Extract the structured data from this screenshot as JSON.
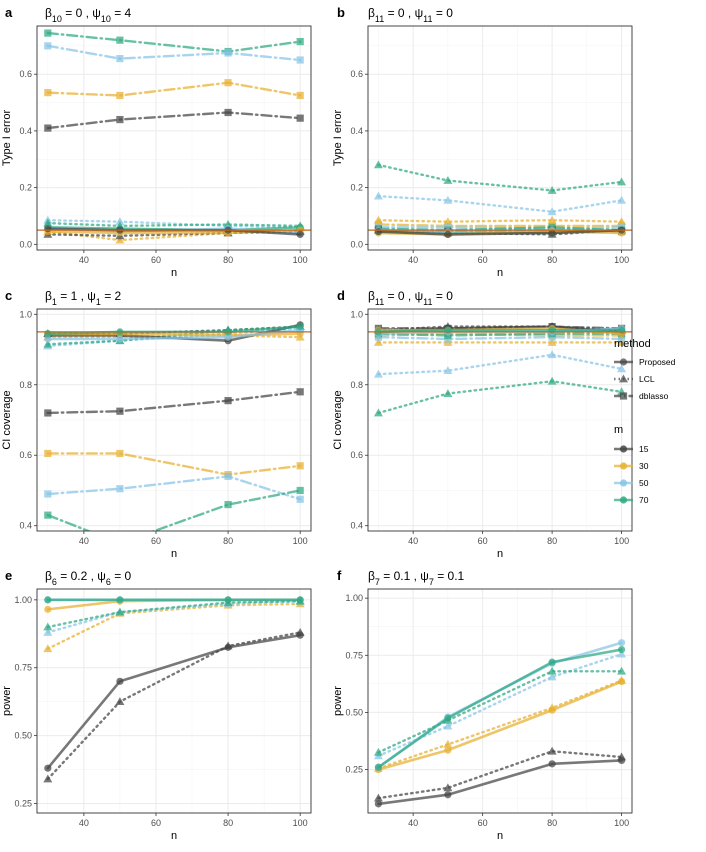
{
  "colors": {
    "m15": "#444444",
    "m30": "#E7B02F",
    "m50": "#86C5E6",
    "m70": "#2EA982",
    "hline": "#C4691A",
    "grid": "#EBEBEB",
    "minor_grid": "#F4F4F4",
    "border": "#333333"
  },
  "legend": {
    "method_title": "method",
    "methods": [
      {
        "label": "Proposed",
        "shape": "circle",
        "linetype": "solid"
      },
      {
        "label": "LCL",
        "shape": "triangle",
        "linetype": "dotted"
      },
      {
        "label": "dblasso",
        "shape": "square",
        "linetype": "dotdash"
      }
    ],
    "m_title": "m",
    "m_values": [
      {
        "label": "15",
        "color": "#444444"
      },
      {
        "label": "30",
        "color": "#E7B02F"
      },
      {
        "label": "50",
        "color": "#86C5E6"
      },
      {
        "label": "70",
        "color": "#2EA982"
      }
    ]
  },
  "chart_data": [
    {
      "panel": "a",
      "type": "line",
      "title": {
        "beta_sub": "10",
        "beta_val": "0",
        "psi_sub": "10",
        "psi_val": "4"
      },
      "xlabel": "n",
      "ylabel": "Type I error",
      "xlim": [
        27,
        103
      ],
      "ylim": [
        -0.02,
        0.77
      ],
      "xticks": [
        40,
        60,
        80,
        100
      ],
      "yticks": [
        0.0,
        0.2,
        0.4,
        0.6
      ],
      "ytick_labels": [
        "0.0",
        "0.2",
        "0.4",
        "0.6"
      ],
      "hline": 0.05,
      "x": [
        30,
        50,
        80,
        100
      ],
      "series": [
        {
          "method": "dblasso",
          "m": "70",
          "values": [
            0.745,
            0.72,
            0.68,
            0.715
          ]
        },
        {
          "method": "dblasso",
          "m": "50",
          "values": [
            0.7,
            0.655,
            0.675,
            0.65
          ]
        },
        {
          "method": "dblasso",
          "m": "30",
          "values": [
            0.535,
            0.525,
            0.57,
            0.525
          ]
        },
        {
          "method": "dblasso",
          "m": "15",
          "values": [
            0.41,
            0.44,
            0.465,
            0.445
          ]
        },
        {
          "method": "LCL",
          "m": "50",
          "values": [
            0.085,
            0.08,
            0.065,
            0.06
          ]
        },
        {
          "method": "LCL",
          "m": "70",
          "values": [
            0.075,
            0.065,
            0.07,
            0.065
          ]
        },
        {
          "method": "LCL",
          "m": "30",
          "values": [
            0.045,
            0.015,
            0.04,
            0.05
          ]
        },
        {
          "method": "LCL",
          "m": "15",
          "values": [
            0.035,
            0.03,
            0.04,
            0.045
          ]
        },
        {
          "method": "Proposed",
          "m": "70",
          "values": [
            0.06,
            0.055,
            0.05,
            0.06
          ]
        },
        {
          "method": "Proposed",
          "m": "50",
          "values": [
            0.055,
            0.045,
            0.055,
            0.04
          ]
        },
        {
          "method": "Proposed",
          "m": "30",
          "values": [
            0.045,
            0.04,
            0.04,
            0.05
          ]
        },
        {
          "method": "Proposed",
          "m": "15",
          "values": [
            0.055,
            0.05,
            0.05,
            0.035
          ]
        }
      ]
    },
    {
      "panel": "b",
      "type": "line",
      "title": {
        "beta_sub": "11",
        "beta_val": "0",
        "psi_sub": "11",
        "psi_val": "0"
      },
      "xlabel": "n",
      "ylabel": "Type I error",
      "xlim": [
        27,
        103
      ],
      "ylim": [
        -0.02,
        0.77
      ],
      "xticks": [
        40,
        60,
        80,
        100
      ],
      "yticks": [
        0.0,
        0.2,
        0.4,
        0.6
      ],
      "ytick_labels": [
        "0.0",
        "0.2",
        "0.4",
        "0.6"
      ],
      "hline": 0.05,
      "x": [
        30,
        50,
        80,
        100
      ],
      "series": [
        {
          "method": "LCL",
          "m": "70",
          "values": [
            0.28,
            0.225,
            0.19,
            0.22
          ]
        },
        {
          "method": "LCL",
          "m": "50",
          "values": [
            0.17,
            0.155,
            0.115,
            0.155
          ]
        },
        {
          "method": "LCL",
          "m": "30",
          "values": [
            0.085,
            0.08,
            0.085,
            0.08
          ]
        },
        {
          "method": "LCL",
          "m": "15",
          "values": [
            0.05,
            0.04,
            0.035,
            0.05
          ]
        },
        {
          "method": "dblasso",
          "m": "30",
          "values": [
            0.07,
            0.065,
            0.065,
            0.065
          ]
        },
        {
          "method": "dblasso",
          "m": "50",
          "values": [
            0.06,
            0.06,
            0.055,
            0.06
          ]
        },
        {
          "method": "dblasso",
          "m": "70",
          "values": [
            0.055,
            0.05,
            0.06,
            0.05
          ]
        },
        {
          "method": "dblasso",
          "m": "15",
          "values": [
            0.05,
            0.045,
            0.05,
            0.045
          ]
        },
        {
          "method": "Proposed",
          "m": "70",
          "values": [
            0.045,
            0.04,
            0.04,
            0.05
          ]
        },
        {
          "method": "Proposed",
          "m": "50",
          "values": [
            0.05,
            0.045,
            0.05,
            0.045
          ]
        },
        {
          "method": "Proposed",
          "m": "30",
          "values": [
            0.04,
            0.035,
            0.045,
            0.04
          ]
        },
        {
          "method": "Proposed",
          "m": "15",
          "values": [
            0.045,
            0.035,
            0.04,
            0.05
          ]
        }
      ]
    },
    {
      "panel": "c",
      "type": "line",
      "title": {
        "beta_sub": "1",
        "beta_val": "1",
        "psi_sub": "1",
        "psi_val": "2"
      },
      "xlabel": "n",
      "ylabel": "CI coverage",
      "xlim": [
        27,
        103
      ],
      "ylim": [
        0.385,
        1.015
      ],
      "xticks": [
        40,
        60,
        80,
        100
      ],
      "yticks": [
        0.4,
        0.6,
        0.8,
        1.0
      ],
      "ytick_labels": [
        "0.4",
        "0.6",
        "0.8",
        "1.0"
      ],
      "hline": 0.95,
      "x": [
        30,
        50,
        80,
        100
      ],
      "series": [
        {
          "method": "dblasso",
          "m": "15",
          "values": [
            0.72,
            0.725,
            0.755,
            0.78
          ]
        },
        {
          "method": "dblasso",
          "m": "30",
          "values": [
            0.605,
            0.605,
            0.545,
            0.57
          ]
        },
        {
          "method": "dblasso",
          "m": "50",
          "values": [
            0.49,
            0.505,
            0.54,
            0.475
          ]
        },
        {
          "method": "dblasso",
          "m": "70",
          "values": [
            0.43,
            0.35,
            0.46,
            0.5
          ]
        },
        {
          "method": "LCL",
          "m": "15",
          "values": [
            0.945,
            0.945,
            0.955,
            0.965
          ]
        },
        {
          "method": "LCL",
          "m": "30",
          "values": [
            0.935,
            0.935,
            0.94,
            0.935
          ]
        },
        {
          "method": "LCL",
          "m": "50",
          "values": [
            0.91,
            0.925,
            0.945,
            0.96
          ]
        },
        {
          "method": "LCL",
          "m": "70",
          "values": [
            0.915,
            0.925,
            0.955,
            0.965
          ]
        },
        {
          "method": "Proposed",
          "m": "15",
          "values": [
            0.94,
            0.94,
            0.925,
            0.97
          ]
        },
        {
          "method": "Proposed",
          "m": "30",
          "values": [
            0.945,
            0.945,
            0.94,
            0.945
          ]
        },
        {
          "method": "Proposed",
          "m": "50",
          "values": [
            0.93,
            0.93,
            0.935,
            0.955
          ]
        },
        {
          "method": "Proposed",
          "m": "70",
          "values": [
            0.945,
            0.95,
            0.95,
            0.965
          ]
        }
      ]
    },
    {
      "panel": "d",
      "type": "line",
      "title": {
        "beta_sub": "11",
        "beta_val": "0",
        "psi_sub": "11",
        "psi_val": "0"
      },
      "xlabel": "n",
      "ylabel": "CI coverage",
      "xlim": [
        27,
        103
      ],
      "ylim": [
        0.385,
        1.015
      ],
      "xticks": [
        40,
        60,
        80,
        100
      ],
      "yticks": [
        0.4,
        0.6,
        0.8,
        1.0
      ],
      "ytick_labels": [
        "0.4",
        "0.6",
        "0.8",
        "1.0"
      ],
      "hline": 0.95,
      "x": [
        30,
        50,
        80,
        100
      ],
      "series": [
        {
          "method": "LCL",
          "m": "70",
          "values": [
            0.72,
            0.775,
            0.81,
            0.78
          ]
        },
        {
          "method": "LCL",
          "m": "50",
          "values": [
            0.83,
            0.84,
            0.885,
            0.845
          ]
        },
        {
          "method": "LCL",
          "m": "30",
          "values": [
            0.92,
            0.92,
            0.92,
            0.92
          ]
        },
        {
          "method": "LCL",
          "m": "15",
          "values": [
            0.955,
            0.965,
            0.965,
            0.955
          ]
        },
        {
          "method": "dblasso",
          "m": "15",
          "values": [
            0.96,
            0.96,
            0.965,
            0.96
          ]
        },
        {
          "method": "dblasso",
          "m": "30",
          "values": [
            0.94,
            0.945,
            0.94,
            0.94
          ]
        },
        {
          "method": "dblasso",
          "m": "50",
          "values": [
            0.935,
            0.93,
            0.935,
            0.93
          ]
        },
        {
          "method": "dblasso",
          "m": "70",
          "values": [
            0.945,
            0.94,
            0.945,
            0.945
          ]
        },
        {
          "method": "Proposed",
          "m": "15",
          "values": [
            0.95,
            0.96,
            0.965,
            0.95
          ]
        },
        {
          "method": "Proposed",
          "m": "30",
          "values": [
            0.955,
            0.955,
            0.96,
            0.945
          ]
        },
        {
          "method": "Proposed",
          "m": "50",
          "values": [
            0.945,
            0.95,
            0.95,
            0.96
          ]
        },
        {
          "method": "Proposed",
          "m": "70",
          "values": [
            0.95,
            0.955,
            0.955,
            0.955
          ]
        }
      ]
    },
    {
      "panel": "e",
      "type": "line",
      "title": {
        "beta_sub": "6",
        "beta_val": "0.2",
        "psi_sub": "6",
        "psi_val": "0"
      },
      "xlabel": "n",
      "ylabel": "power",
      "xlim": [
        27,
        103
      ],
      "ylim": [
        0.215,
        1.04
      ],
      "xticks": [
        40,
        60,
        80,
        100
      ],
      "yticks": [
        0.25,
        0.5,
        0.75,
        1.0
      ],
      "ytick_labels": [
        "0.25",
        "0.50",
        "0.75",
        "1.00"
      ],
      "hline": null,
      "x": [
        30,
        50,
        80,
        100
      ],
      "series": [
        {
          "method": "Proposed",
          "m": "15",
          "values": [
            0.38,
            0.7,
            0.825,
            0.87
          ]
        },
        {
          "method": "LCL",
          "m": "15",
          "values": [
            0.34,
            0.625,
            0.83,
            0.88
          ]
        },
        {
          "method": "Proposed",
          "m": "30",
          "values": [
            0.965,
            0.995,
            1.0,
            1.0
          ]
        },
        {
          "method": "LCL",
          "m": "30",
          "values": [
            0.82,
            0.95,
            0.98,
            0.985
          ]
        },
        {
          "method": "Proposed",
          "m": "50",
          "values": [
            1.0,
            1.0,
            1.0,
            1.0
          ]
        },
        {
          "method": "LCL",
          "m": "50",
          "values": [
            0.88,
            0.955,
            0.985,
            0.995
          ]
        },
        {
          "method": "Proposed",
          "m": "70",
          "values": [
            1.0,
            1.0,
            1.0,
            1.0
          ]
        },
        {
          "method": "LCL",
          "m": "70",
          "values": [
            0.9,
            0.955,
            0.99,
            0.995
          ]
        }
      ]
    },
    {
      "panel": "f",
      "type": "line",
      "title": {
        "beta_sub": "7",
        "beta_val": "0.1",
        "psi_sub": "7",
        "psi_val": "0.1"
      },
      "xlabel": "n",
      "ylabel": "power",
      "xlim": [
        27,
        103
      ],
      "ylim": [
        0.06,
        1.04
      ],
      "xticks": [
        40,
        60,
        80,
        100
      ],
      "yticks": [
        0.25,
        0.5,
        0.75,
        1.0
      ],
      "ytick_labels": [
        "0.25",
        "0.50",
        "0.75",
        "1.00"
      ],
      "hline": null,
      "x": [
        30,
        50,
        80,
        100
      ],
      "series": [
        {
          "method": "Proposed",
          "m": "15",
          "values": [
            0.1,
            0.14,
            0.275,
            0.29
          ]
        },
        {
          "method": "LCL",
          "m": "15",
          "values": [
            0.125,
            0.17,
            0.33,
            0.305
          ]
        },
        {
          "method": "Proposed",
          "m": "30",
          "values": [
            0.25,
            0.335,
            0.51,
            0.635
          ]
        },
        {
          "method": "LCL",
          "m": "30",
          "values": [
            0.255,
            0.36,
            0.52,
            0.64
          ]
        },
        {
          "method": "Proposed",
          "m": "50",
          "values": [
            0.26,
            0.48,
            0.715,
            0.805
          ]
        },
        {
          "method": "LCL",
          "m": "50",
          "values": [
            0.31,
            0.44,
            0.655,
            0.755
          ]
        },
        {
          "method": "Proposed",
          "m": "70",
          "values": [
            0.26,
            0.475,
            0.72,
            0.775
          ]
        },
        {
          "method": "LCL",
          "m": "70",
          "values": [
            0.325,
            0.465,
            0.68,
            0.68
          ]
        }
      ]
    }
  ]
}
